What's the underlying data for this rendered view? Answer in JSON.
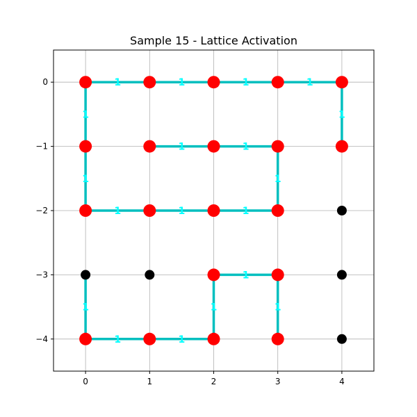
{
  "chart_data": {
    "type": "scatter",
    "title": "Sample 15 - Lattice Activation",
    "xlabel": "",
    "ylabel": "",
    "xlim": [
      -0.5,
      4.5
    ],
    "ylim": [
      -4.5,
      0.5
    ],
    "xticks": [
      0,
      1,
      2,
      3,
      4
    ],
    "yticks": [
      0,
      -1,
      -2,
      -3,
      -4
    ],
    "xtick_labels": [
      "0",
      "1",
      "2",
      "3",
      "4"
    ],
    "ytick_labels": [
      "0",
      "−1",
      "−2",
      "−3",
      "−4"
    ],
    "grid": true,
    "colors": {
      "active": "#ff0000",
      "inactive": "#000000",
      "edge": "#00bfbf",
      "edge_label": "#00ffff",
      "grid": "#b0b0b0"
    },
    "nodes": [
      {
        "x": 0,
        "y": 0,
        "active": true
      },
      {
        "x": 1,
        "y": 0,
        "active": true
      },
      {
        "x": 2,
        "y": 0,
        "active": true
      },
      {
        "x": 3,
        "y": 0,
        "active": true
      },
      {
        "x": 4,
        "y": 0,
        "active": true
      },
      {
        "x": 0,
        "y": -1,
        "active": true
      },
      {
        "x": 1,
        "y": -1,
        "active": true
      },
      {
        "x": 2,
        "y": -1,
        "active": true
      },
      {
        "x": 3,
        "y": -1,
        "active": true
      },
      {
        "x": 4,
        "y": -1,
        "active": true
      },
      {
        "x": 0,
        "y": -2,
        "active": true
      },
      {
        "x": 1,
        "y": -2,
        "active": true
      },
      {
        "x": 2,
        "y": -2,
        "active": true
      },
      {
        "x": 3,
        "y": -2,
        "active": true
      },
      {
        "x": 4,
        "y": -2,
        "active": false
      },
      {
        "x": 0,
        "y": -3,
        "active": false
      },
      {
        "x": 1,
        "y": -3,
        "active": false
      },
      {
        "x": 2,
        "y": -3,
        "active": true
      },
      {
        "x": 3,
        "y": -3,
        "active": true
      },
      {
        "x": 4,
        "y": -3,
        "active": false
      },
      {
        "x": 0,
        "y": -4,
        "active": true
      },
      {
        "x": 1,
        "y": -4,
        "active": true
      },
      {
        "x": 2,
        "y": -4,
        "active": true
      },
      {
        "x": 3,
        "y": -4,
        "active": true
      },
      {
        "x": 4,
        "y": -4,
        "active": false
      }
    ],
    "edges": [
      {
        "from": [
          0,
          0
        ],
        "to": [
          1,
          0
        ],
        "label": "1"
      },
      {
        "from": [
          1,
          0
        ],
        "to": [
          2,
          0
        ],
        "label": "1"
      },
      {
        "from": [
          2,
          0
        ],
        "to": [
          3,
          0
        ],
        "label": "1"
      },
      {
        "from": [
          3,
          0
        ],
        "to": [
          4,
          0
        ],
        "label": "1"
      },
      {
        "from": [
          0,
          0
        ],
        "to": [
          0,
          -1
        ],
        "label": "1"
      },
      {
        "from": [
          4,
          0
        ],
        "to": [
          4,
          -1
        ],
        "label": "1"
      },
      {
        "from": [
          1,
          -1
        ],
        "to": [
          2,
          -1
        ],
        "label": "1"
      },
      {
        "from": [
          2,
          -1
        ],
        "to": [
          3,
          -1
        ],
        "label": "1"
      },
      {
        "from": [
          0,
          -1
        ],
        "to": [
          0,
          -2
        ],
        "label": "1"
      },
      {
        "from": [
          3,
          -1
        ],
        "to": [
          3,
          -2
        ],
        "label": "1"
      },
      {
        "from": [
          0,
          -2
        ],
        "to": [
          1,
          -2
        ],
        "label": "1"
      },
      {
        "from": [
          1,
          -2
        ],
        "to": [
          2,
          -2
        ],
        "label": "1"
      },
      {
        "from": [
          2,
          -2
        ],
        "to": [
          3,
          -2
        ],
        "label": "1"
      },
      {
        "from": [
          2,
          -3
        ],
        "to": [
          3,
          -3
        ],
        "label": "1"
      },
      {
        "from": [
          0,
          -3
        ],
        "to": [
          0,
          -4
        ],
        "label": "1"
      },
      {
        "from": [
          2,
          -3
        ],
        "to": [
          2,
          -4
        ],
        "label": "1"
      },
      {
        "from": [
          3,
          -3
        ],
        "to": [
          3,
          -4
        ],
        "label": "1"
      },
      {
        "from": [
          0,
          -4
        ],
        "to": [
          1,
          -4
        ],
        "label": "1"
      },
      {
        "from": [
          1,
          -4
        ],
        "to": [
          2,
          -4
        ],
        "label": "1"
      }
    ]
  }
}
